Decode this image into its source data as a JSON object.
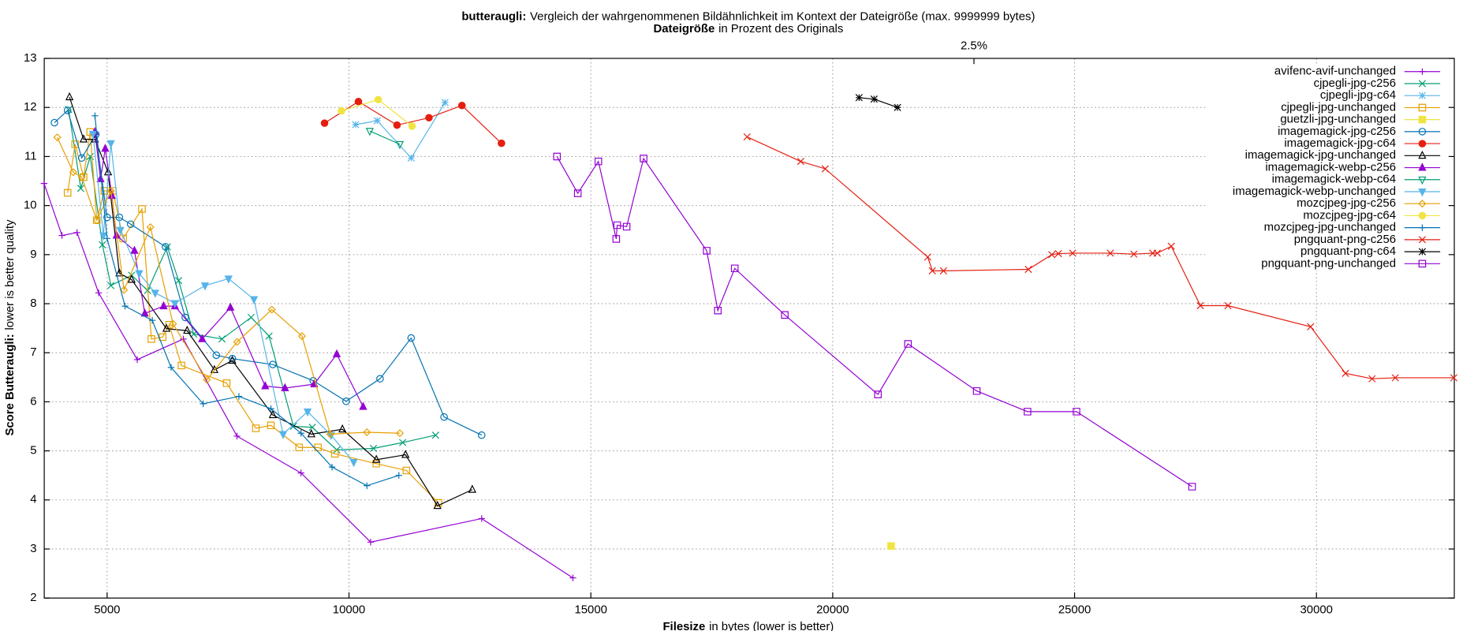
{
  "chart_data": {
    "type": "line",
    "title_bold": "butteraugli:",
    "title": "Vergleich der wahrgenommenen Bildähnlichkeit im Kontext der Dateigröße (max. 9999999 bytes)",
    "subtitle_bold": "Dateigröße",
    "subtitle": "in Prozent des Originals",
    "x_label_bold": "Filesize",
    "x_label": "in bytes (lower is better)",
    "y_label_bold": "Score Butteraugli:",
    "y_label": "lower is better quality",
    "xlim": [
      3700,
      32850
    ],
    "ylim": [
      2,
      13
    ],
    "xticks": [
      5000,
      10000,
      15000,
      20000,
      25000,
      30000
    ],
    "yticks": [
      2,
      3,
      4,
      5,
      6,
      7,
      8,
      9,
      10,
      11,
      12,
      13
    ],
    "x2ticks": [
      {
        "value": 22920,
        "label": "2.5%"
      }
    ],
    "grid": true,
    "legend": "top-right",
    "series": [
      {
        "name": "avifenc-avif-unchanged",
        "color": "#9400d3",
        "marker": "plus",
        "x": [
          3697,
          4067,
          4378,
          4825,
          5623,
          6576,
          7685,
          9008,
          10448,
          12743,
          14630
        ],
        "values": [
          10.45,
          9.39,
          9.45,
          8.22,
          6.86,
          7.28,
          5.3,
          4.55,
          3.14,
          3.62,
          2.41
        ]
      },
      {
        "name": "cjpegli-jpg-c256",
        "color": "#009e73",
        "marker": "x",
        "x": [
          4203,
          4456,
          4650,
          4903,
          5078,
          5506,
          5837,
          6245,
          6479,
          6790,
          7374,
          7977,
          8347,
          8852,
          9242,
          9747,
          10506,
          11110,
          11791
        ],
        "values": [
          11.96,
          10.35,
          11.0,
          9.2,
          8.37,
          8.58,
          8.27,
          9.16,
          8.47,
          7.38,
          7.28,
          7.72,
          7.34,
          5.5,
          5.48,
          5.02,
          5.05,
          5.17,
          5.32
        ]
      },
      {
        "name": "cjpegli-jpg-c64",
        "color": "#56b4e9",
        "marker": "star",
        "x": [
          10137,
          10584,
          11285,
          11985
        ],
        "values": [
          11.65,
          11.73,
          10.97,
          12.1
        ]
      },
      {
        "name": "cjpegli-jpg-unchanged",
        "color": "#e69f00",
        "marker": "square",
        "x": [
          4183,
          4339,
          4514,
          4650,
          4786,
          4942,
          5117,
          5331,
          5720,
          5915,
          6148,
          6284,
          6537,
          7471,
          8074,
          8385,
          8969,
          9358,
          9708,
          10565,
          11187,
          11849
        ],
        "values": [
          10.26,
          11.25,
          10.58,
          11.5,
          9.7,
          10.3,
          10.3,
          9.33,
          9.93,
          7.28,
          7.32,
          7.57,
          6.74,
          6.38,
          5.46,
          5.52,
          5.07,
          5.07,
          4.94,
          4.74,
          4.6,
          3.94
        ]
      },
      {
        "name": "guetzli-jpg-unchanged",
        "color": "#f0e442",
        "marker": "filled-square",
        "x": [
          21207
        ],
        "values": [
          3.06
        ]
      },
      {
        "name": "imagemagick-jpg-c256",
        "color": "#0072b2",
        "marker": "circle",
        "x": [
          3911,
          4183,
          4475,
          4767,
          5000,
          5253,
          5487,
          6207,
          6615,
          7257,
          7588,
          8425,
          9261,
          9941,
          10642,
          11285,
          11966,
          12743
        ],
        "values": [
          11.69,
          11.94,
          10.97,
          11.45,
          9.76,
          9.76,
          9.62,
          9.16,
          7.72,
          6.95,
          6.88,
          6.76,
          6.43,
          6.01,
          6.47,
          7.3,
          5.69,
          5.32
        ]
      },
      {
        "name": "imagemagick-jpg-c64",
        "color": "#e51e10",
        "marker": "filled-circle",
        "x": [
          9495,
          10195,
          10993,
          11654,
          12335,
          13152
        ],
        "values": [
          11.68,
          12.12,
          11.64,
          11.79,
          12.04,
          11.27
        ]
      },
      {
        "name": "imagemagick-jpg-unchanged",
        "color": "#000000",
        "marker": "triangle",
        "x": [
          4222,
          4514,
          4748,
          5020,
          5253,
          5506,
          6226,
          6654,
          7218,
          7588,
          8425,
          9222,
          9864,
          10565,
          11168,
          11829,
          12549
        ],
        "values": [
          12.21,
          11.35,
          11.35,
          10.68,
          8.62,
          8.49,
          7.49,
          7.45,
          6.65,
          6.84,
          5.73,
          5.34,
          5.44,
          4.82,
          4.92,
          3.88,
          4.21
        ]
      },
      {
        "name": "imagemagick-webp-c256",
        "color": "#9400d3",
        "marker": "filled-triangle",
        "x": [
          4748,
          4864,
          4961,
          5098,
          5195,
          5565,
          5779,
          6168,
          6401,
          6965,
          7549,
          8268,
          8677,
          9280,
          9747,
          10292
        ],
        "values": [
          11.5,
          10.54,
          11.16,
          10.2,
          9.39,
          9.08,
          7.8,
          7.95,
          7.95,
          7.28,
          7.92,
          6.32,
          6.28,
          6.36,
          6.97,
          5.9
        ]
      },
      {
        "name": "imagemagick-webp-c64",
        "color": "#009e73",
        "marker": "triangle-down",
        "x": [
          10429,
          11051
        ],
        "values": [
          11.52,
          11.25
        ]
      },
      {
        "name": "imagemagick-webp-unchanged",
        "color": "#56b4e9",
        "marker": "filled-triangle-down",
        "x": [
          4709,
          4923,
          5078,
          5273,
          5662,
          5993,
          6401,
          7024,
          7510,
          8035,
          8638,
          9144,
          9630,
          10098
        ],
        "values": [
          11.46,
          9.39,
          11.27,
          9.5,
          8.62,
          8.22,
          8.01,
          8.37,
          8.51,
          8.09,
          5.34,
          5.8,
          5.32,
          4.77
        ]
      },
      {
        "name": "mozcjpeg-jpg-c256",
        "color": "#e69f00",
        "marker": "diamond",
        "x": [
          3969,
          4300,
          4475,
          4786,
          5078,
          5350,
          5895,
          6362,
          7063,
          7685,
          8405,
          9028,
          9611,
          10370,
          11051
        ],
        "values": [
          11.39,
          10.68,
          10.58,
          9.7,
          10.3,
          8.28,
          9.56,
          7.59,
          6.45,
          7.22,
          7.88,
          7.34,
          5.34,
          5.38,
          5.36
        ]
      },
      {
        "name": "mozcjpeg-jpg-c64",
        "color": "#f0e442",
        "marker": "filled-circle",
        "x": [
          9845,
          10604,
          11304
        ],
        "values": [
          11.93,
          12.16,
          11.62
        ]
      },
      {
        "name": "mozcjpeg-jpg-unchanged",
        "color": "#0072b2",
        "marker": "plus",
        "x": [
          4748,
          5000,
          5370,
          5934,
          6323,
          6985,
          7724,
          8386,
          9008,
          9650,
          10370,
          11031
        ],
        "values": [
          11.83,
          9.33,
          7.95,
          7.66,
          6.7,
          5.96,
          6.11,
          5.86,
          5.36,
          4.67,
          4.29,
          4.5
        ]
      },
      {
        "name": "pngquant-png-c256",
        "color": "#e51e10",
        "marker": "x",
        "x": [
          18230,
          19339,
          19845,
          21965,
          22060,
          22290,
          24045,
          24530,
          24665,
          24960,
          25740,
          26225,
          26615,
          26710,
          27000,
          27600,
          28170,
          29880,
          30600,
          31150,
          31630,
          32840
        ],
        "values": [
          11.4,
          10.9,
          10.75,
          8.95,
          8.67,
          8.67,
          8.7,
          9.0,
          9.02,
          9.03,
          9.03,
          9.01,
          9.03,
          9.03,
          9.17,
          7.96,
          7.96,
          7.53,
          6.58,
          6.47,
          6.49,
          6.49
        ]
      },
      {
        "name": "pngquant-png-c64",
        "color": "#000000",
        "marker": "star",
        "x": [
          20545,
          20855,
          21340
        ],
        "values": [
          12.2,
          12.17,
          12.0
        ]
      },
      {
        "name": "pngquant-png-unchanged",
        "color": "#9400d3",
        "marker": "square",
        "x": [
          14300,
          14730,
          15155,
          15525,
          15545,
          15740,
          16090,
          17395,
          17625,
          17975,
          19010,
          20935,
          21556,
          22977,
          24027,
          25040,
          27430
        ],
        "values": [
          11.0,
          10.25,
          10.9,
          9.32,
          9.6,
          9.57,
          10.96,
          9.08,
          7.86,
          8.72,
          7.77,
          6.15,
          7.18,
          6.22,
          5.8,
          5.8,
          4.27
        ]
      }
    ]
  }
}
